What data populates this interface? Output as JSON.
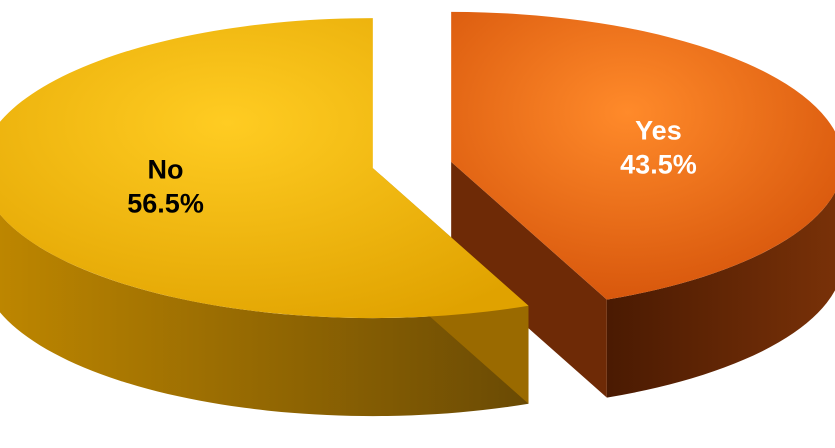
{
  "chart_data": {
    "type": "pie",
    "style": "3d-exploded",
    "slices": [
      {
        "label": "Yes",
        "value": 43.5,
        "value_label": "43.5%",
        "color": "#f06a10",
        "side_color": "#6e2a06",
        "text_color": "#ffffff"
      },
      {
        "label": "No",
        "value": 56.5,
        "value_label": "56.5%",
        "color": "#f7b80a",
        "side_color": "#9a6a00",
        "text_color": "#000000"
      }
    ],
    "start_angle_deg": 0,
    "direction": "clockwise",
    "legend": "none"
  }
}
